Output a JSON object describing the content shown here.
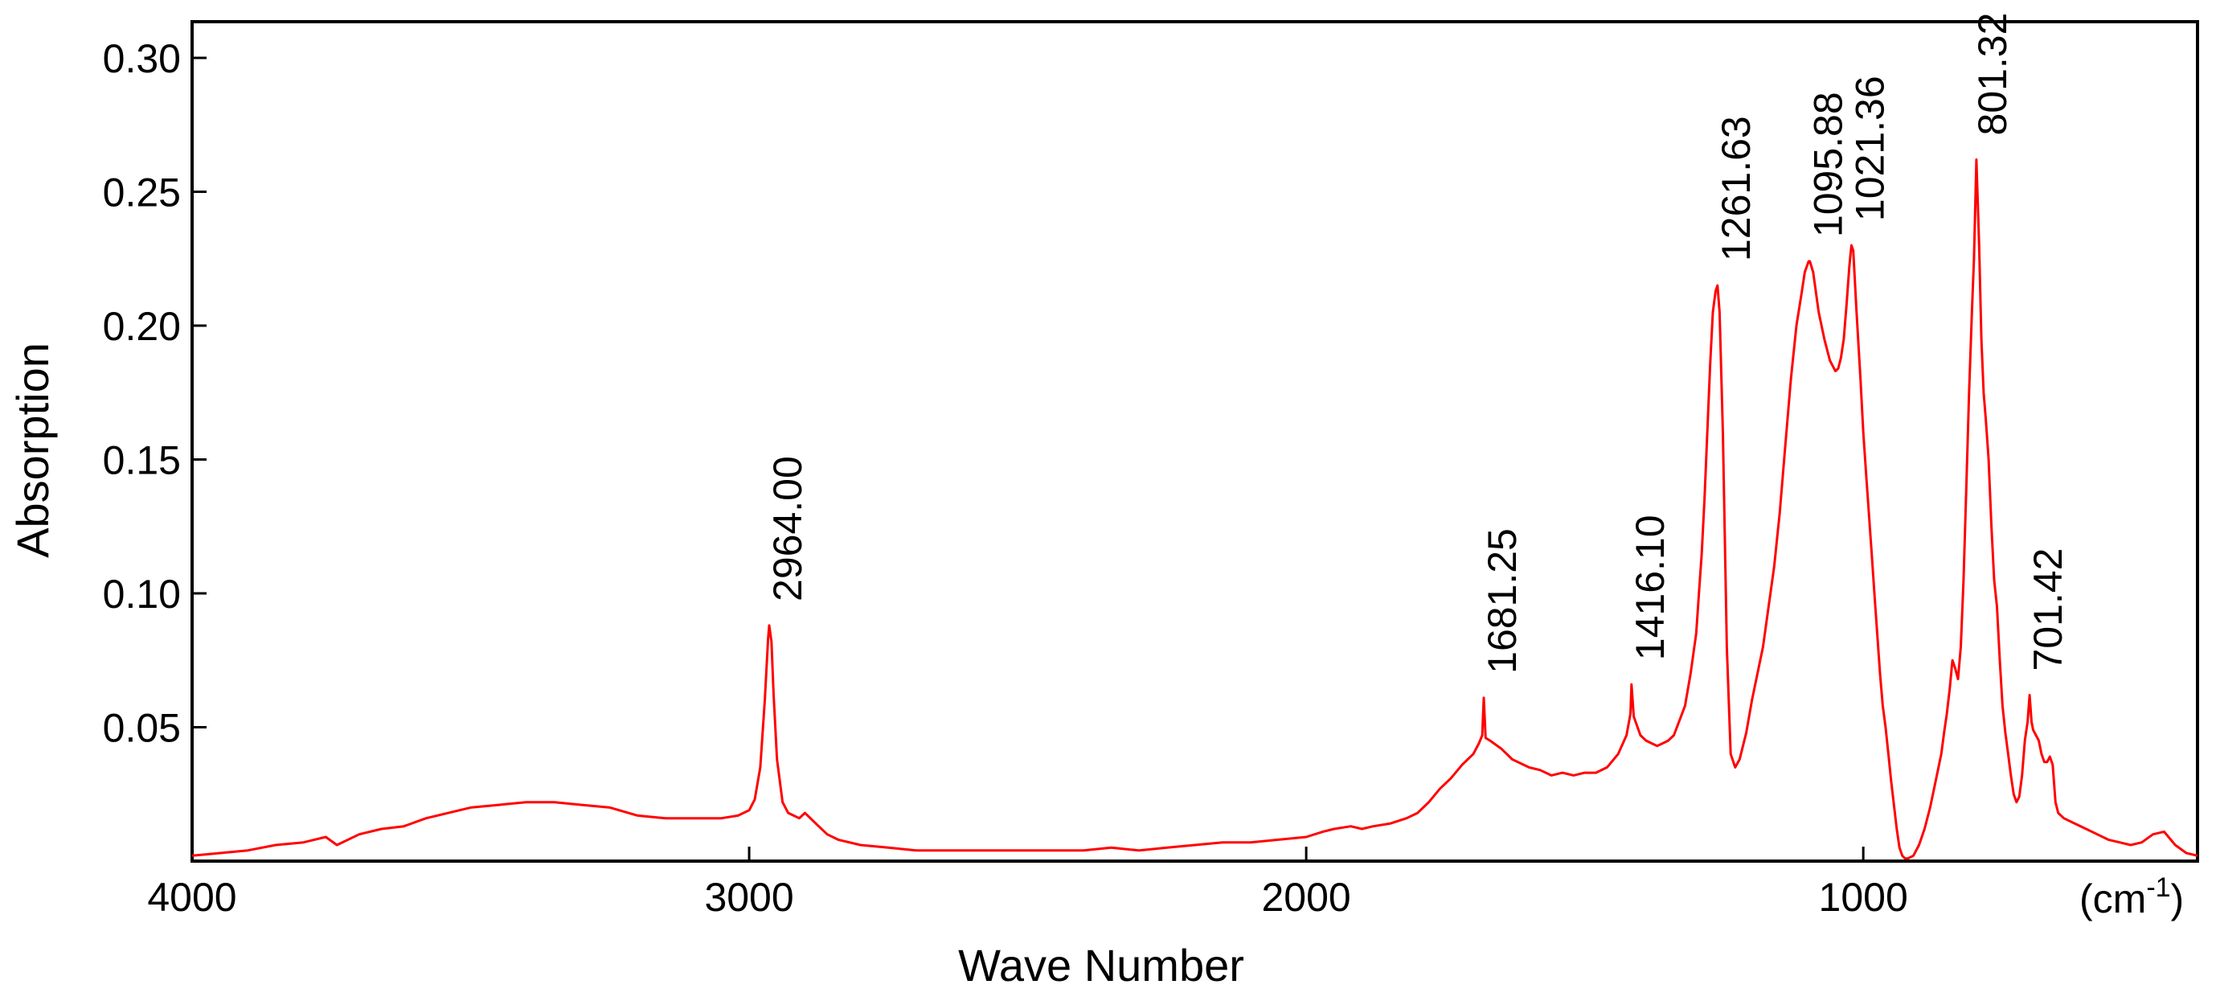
{
  "chart_data": {
    "type": "line",
    "title": "",
    "xlabel": "Wave Number",
    "ylabel": "Absorption",
    "x_unit": "(cm",
    "x_unit_sup": "-1",
    "x_unit_close": ")",
    "xlim": [
      4000,
      400
    ],
    "ylim": [
      0,
      0.3135
    ],
    "x_reversed": true,
    "grid": false,
    "line_color": "#ff0000",
    "xticks": [
      4000,
      3000,
      2000,
      1000
    ],
    "xtick_labels": [
      "4000",
      "3000",
      "2000",
      "1000"
    ],
    "yticks": [
      0.05,
      0.1,
      0.15,
      0.2,
      0.25,
      0.3
    ],
    "ytick_labels": [
      "0.05",
      "0.10",
      "0.15",
      "0.20",
      "0.25",
      "0.30"
    ],
    "annotations": [
      {
        "x": 2964.0,
        "y": 0.088,
        "text": "2964.00"
      },
      {
        "x": 1681.25,
        "y": 0.061,
        "text": "1681.25"
      },
      {
        "x": 1416.1,
        "y": 0.066,
        "text": "1416.10"
      },
      {
        "x": 1261.63,
        "y": 0.215,
        "text": "1261.63"
      },
      {
        "x": 1095.88,
        "y": 0.224,
        "text": "1095.88"
      },
      {
        "x": 1021.36,
        "y": 0.23,
        "text": "1021.36"
      },
      {
        "x": 801.32,
        "y": 0.262,
        "text": "801.32"
      },
      {
        "x": 701.42,
        "y": 0.062,
        "text": "701.42"
      }
    ],
    "series": [
      {
        "x": [
          4000,
          3950,
          3900,
          3850,
          3800,
          3760,
          3740,
          3700,
          3660,
          3620,
          3580,
          3540,
          3500,
          3450,
          3400,
          3350,
          3300,
          3250,
          3200,
          3150,
          3100,
          3050,
          3020,
          3000,
          2990,
          2980,
          2972,
          2966,
          2964,
          2960,
          2956,
          2950,
          2940,
          2930,
          2920,
          2910,
          2900,
          2880,
          2860,
          2840,
          2800,
          2750,
          2700,
          2600,
          2500,
          2400,
          2350,
          2300,
          2250,
          2200,
          2150,
          2100,
          2050,
          2000,
          1970,
          1950,
          1920,
          1900,
          1880,
          1850,
          1820,
          1800,
          1780,
          1760,
          1740,
          1720,
          1700,
          1690,
          1684,
          1681.25,
          1678,
          1670,
          1650,
          1630,
          1600,
          1580,
          1560,
          1540,
          1520,
          1500,
          1480,
          1460,
          1440,
          1425,
          1418,
          1416.1,
          1412,
          1400,
          1390,
          1380,
          1370,
          1360,
          1350,
          1340,
          1320,
          1310,
          1300,
          1295,
          1290,
          1285,
          1280,
          1275,
          1270,
          1265,
          1261.63,
          1258,
          1252,
          1245,
          1238,
          1230,
          1222,
          1210,
          1200,
          1180,
          1160,
          1150,
          1140,
          1130,
          1120,
          1110,
          1105,
          1098,
          1095.88,
          1090,
          1080,
          1070,
          1060,
          1050,
          1045,
          1040,
          1035,
          1030,
          1025,
          1021.36,
          1018,
          1012,
          1005,
          1000,
          995,
          990,
          985,
          980,
          975,
          970,
          965,
          960,
          955,
          950,
          940,
          935,
          930,
          925,
          920,
          910,
          900,
          890,
          880,
          870,
          860,
          855,
          850,
          845,
          840,
          835,
          830,
          825,
          820,
          815,
          810,
          805,
          801.32,
          797,
          792,
          788,
          784,
          780,
          775,
          770,
          765,
          760,
          755,
          750,
          745,
          740,
          735,
          730,
          725,
          720,
          715,
          710,
          705,
          701.42,
          698,
          695,
          690,
          685,
          680,
          675,
          670,
          665,
          660,
          655,
          650,
          640,
          620,
          600,
          580,
          560,
          540,
          520,
          500,
          480,
          460,
          440,
          420,
          400
        ],
        "y": [
          0.002,
          0.003,
          0.004,
          0.006,
          0.007,
          0.009,
          0.006,
          0.01,
          0.012,
          0.013,
          0.016,
          0.018,
          0.02,
          0.021,
          0.022,
          0.022,
          0.021,
          0.02,
          0.017,
          0.016,
          0.016,
          0.016,
          0.017,
          0.019,
          0.023,
          0.035,
          0.06,
          0.083,
          0.088,
          0.082,
          0.062,
          0.038,
          0.022,
          0.018,
          0.017,
          0.016,
          0.018,
          0.014,
          0.01,
          0.008,
          0.006,
          0.005,
          0.004,
          0.004,
          0.004,
          0.004,
          0.005,
          0.004,
          0.005,
          0.006,
          0.007,
          0.007,
          0.008,
          0.009,
          0.011,
          0.012,
          0.013,
          0.012,
          0.013,
          0.014,
          0.016,
          0.018,
          0.022,
          0.027,
          0.031,
          0.036,
          0.04,
          0.044,
          0.047,
          0.061,
          0.046,
          0.045,
          0.042,
          0.038,
          0.035,
          0.034,
          0.032,
          0.033,
          0.032,
          0.033,
          0.033,
          0.035,
          0.04,
          0.047,
          0.055,
          0.066,
          0.054,
          0.047,
          0.045,
          0.044,
          0.043,
          0.044,
          0.045,
          0.047,
          0.058,
          0.07,
          0.085,
          0.1,
          0.115,
          0.135,
          0.16,
          0.185,
          0.205,
          0.213,
          0.215,
          0.205,
          0.16,
          0.08,
          0.04,
          0.035,
          0.038,
          0.048,
          0.06,
          0.08,
          0.11,
          0.13,
          0.155,
          0.18,
          0.2,
          0.213,
          0.22,
          0.224,
          0.224,
          0.22,
          0.205,
          0.195,
          0.187,
          0.183,
          0.184,
          0.188,
          0.195,
          0.208,
          0.222,
          0.23,
          0.228,
          0.205,
          0.18,
          0.16,
          0.145,
          0.13,
          0.115,
          0.1,
          0.085,
          0.07,
          0.058,
          0.05,
          0.04,
          0.03,
          0.012,
          0.005,
          0.002,
          0.001,
          0.001,
          0.002,
          0.006,
          0.012,
          0.02,
          0.03,
          0.04,
          0.048,
          0.055,
          0.064,
          0.075,
          0.072,
          0.068,
          0.08,
          0.105,
          0.14,
          0.175,
          0.205,
          0.225,
          0.262,
          0.23,
          0.195,
          0.175,
          0.165,
          0.15,
          0.125,
          0.105,
          0.095,
          0.075,
          0.058,
          0.048,
          0.04,
          0.032,
          0.025,
          0.022,
          0.024,
          0.032,
          0.045,
          0.052,
          0.062,
          0.052,
          0.049,
          0.047,
          0.045,
          0.04,
          0.037,
          0.037,
          0.039,
          0.036,
          0.022,
          0.018,
          0.016,
          0.014,
          0.012,
          0.01,
          0.008,
          0.007,
          0.006,
          0.007,
          0.01,
          0.011,
          0.006,
          0.003,
          0.002
        ]
      }
    ]
  }
}
